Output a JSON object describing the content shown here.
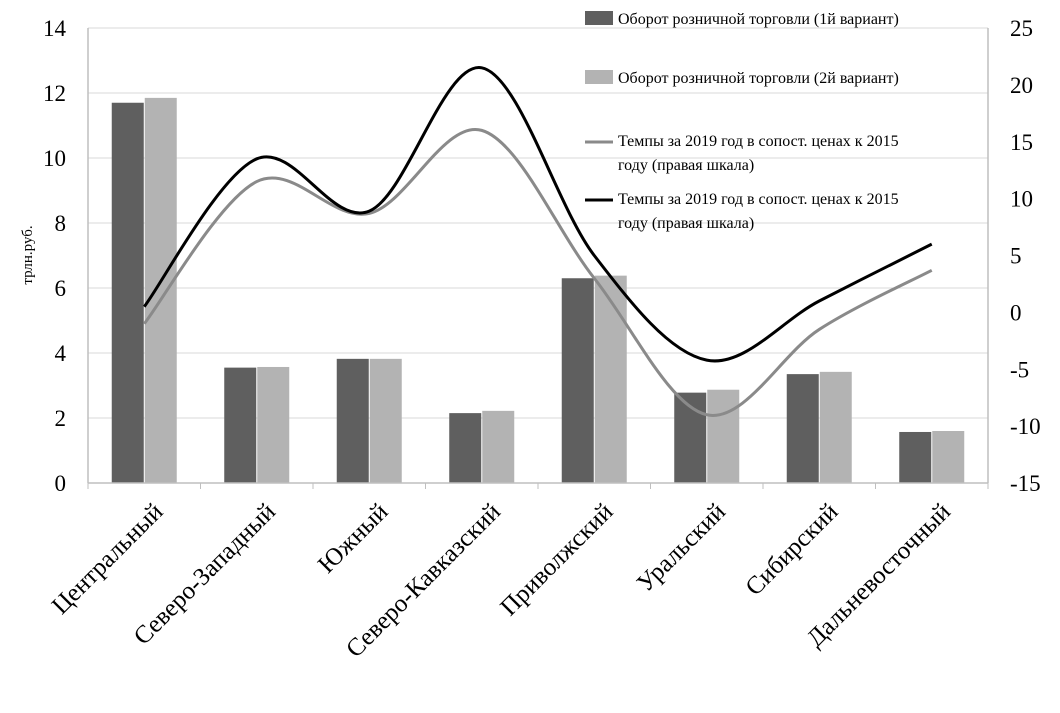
{
  "chart_data": {
    "type": "bar",
    "categories": [
      "Центральный",
      "Северо-Западный",
      "Южный",
      "Северо-Кавказский",
      "Приволжский",
      "Уральский",
      "Сибирский",
      "Дальневосточный"
    ],
    "ylabel": "трлн.руб.",
    "ylim": [
      0,
      14
    ],
    "y_ticks": [
      "0",
      "2",
      "4",
      "6",
      "8",
      "10",
      "12",
      "14"
    ],
    "y2lim": [
      -15,
      25
    ],
    "y2_ticks": [
      "-15",
      "-10",
      "-5",
      "0",
      "5",
      "10",
      "15",
      "20",
      "25"
    ],
    "grid": true,
    "legend_position": "top-right",
    "bar_series": [
      {
        "name": "Оборот розничной торговли (1й вариант)",
        "color": "#5f5f5f",
        "axis": "left",
        "values": [
          11.7,
          3.55,
          3.82,
          2.15,
          6.3,
          2.78,
          3.35,
          1.57
        ]
      },
      {
        "name": "Оборот розничной торговли (2й вариант)",
        "color": "#b3b3b3",
        "axis": "left",
        "values": [
          11.85,
          3.57,
          3.82,
          2.22,
          6.38,
          2.87,
          3.42,
          1.6
        ]
      }
    ],
    "line_series": [
      {
        "name_lines": [
          "Темпы за 2019 год в сопост. ценах к 2015",
          "году (правая шкала)"
        ],
        "color": "#8a8a8a",
        "axis": "right",
        "values": [
          -1,
          11.5,
          8.7,
          16,
          3,
          -9,
          -1.5,
          3.7
        ]
      },
      {
        "name_lines": [
          "Темпы за 2019 год в сопост. ценах к 2015",
          "году (правая шкала)"
        ],
        "color": "#000000",
        "axis": "right",
        "values": [
          0.5,
          13.5,
          8.9,
          21.5,
          5,
          -4.2,
          1,
          6
        ]
      }
    ]
  }
}
